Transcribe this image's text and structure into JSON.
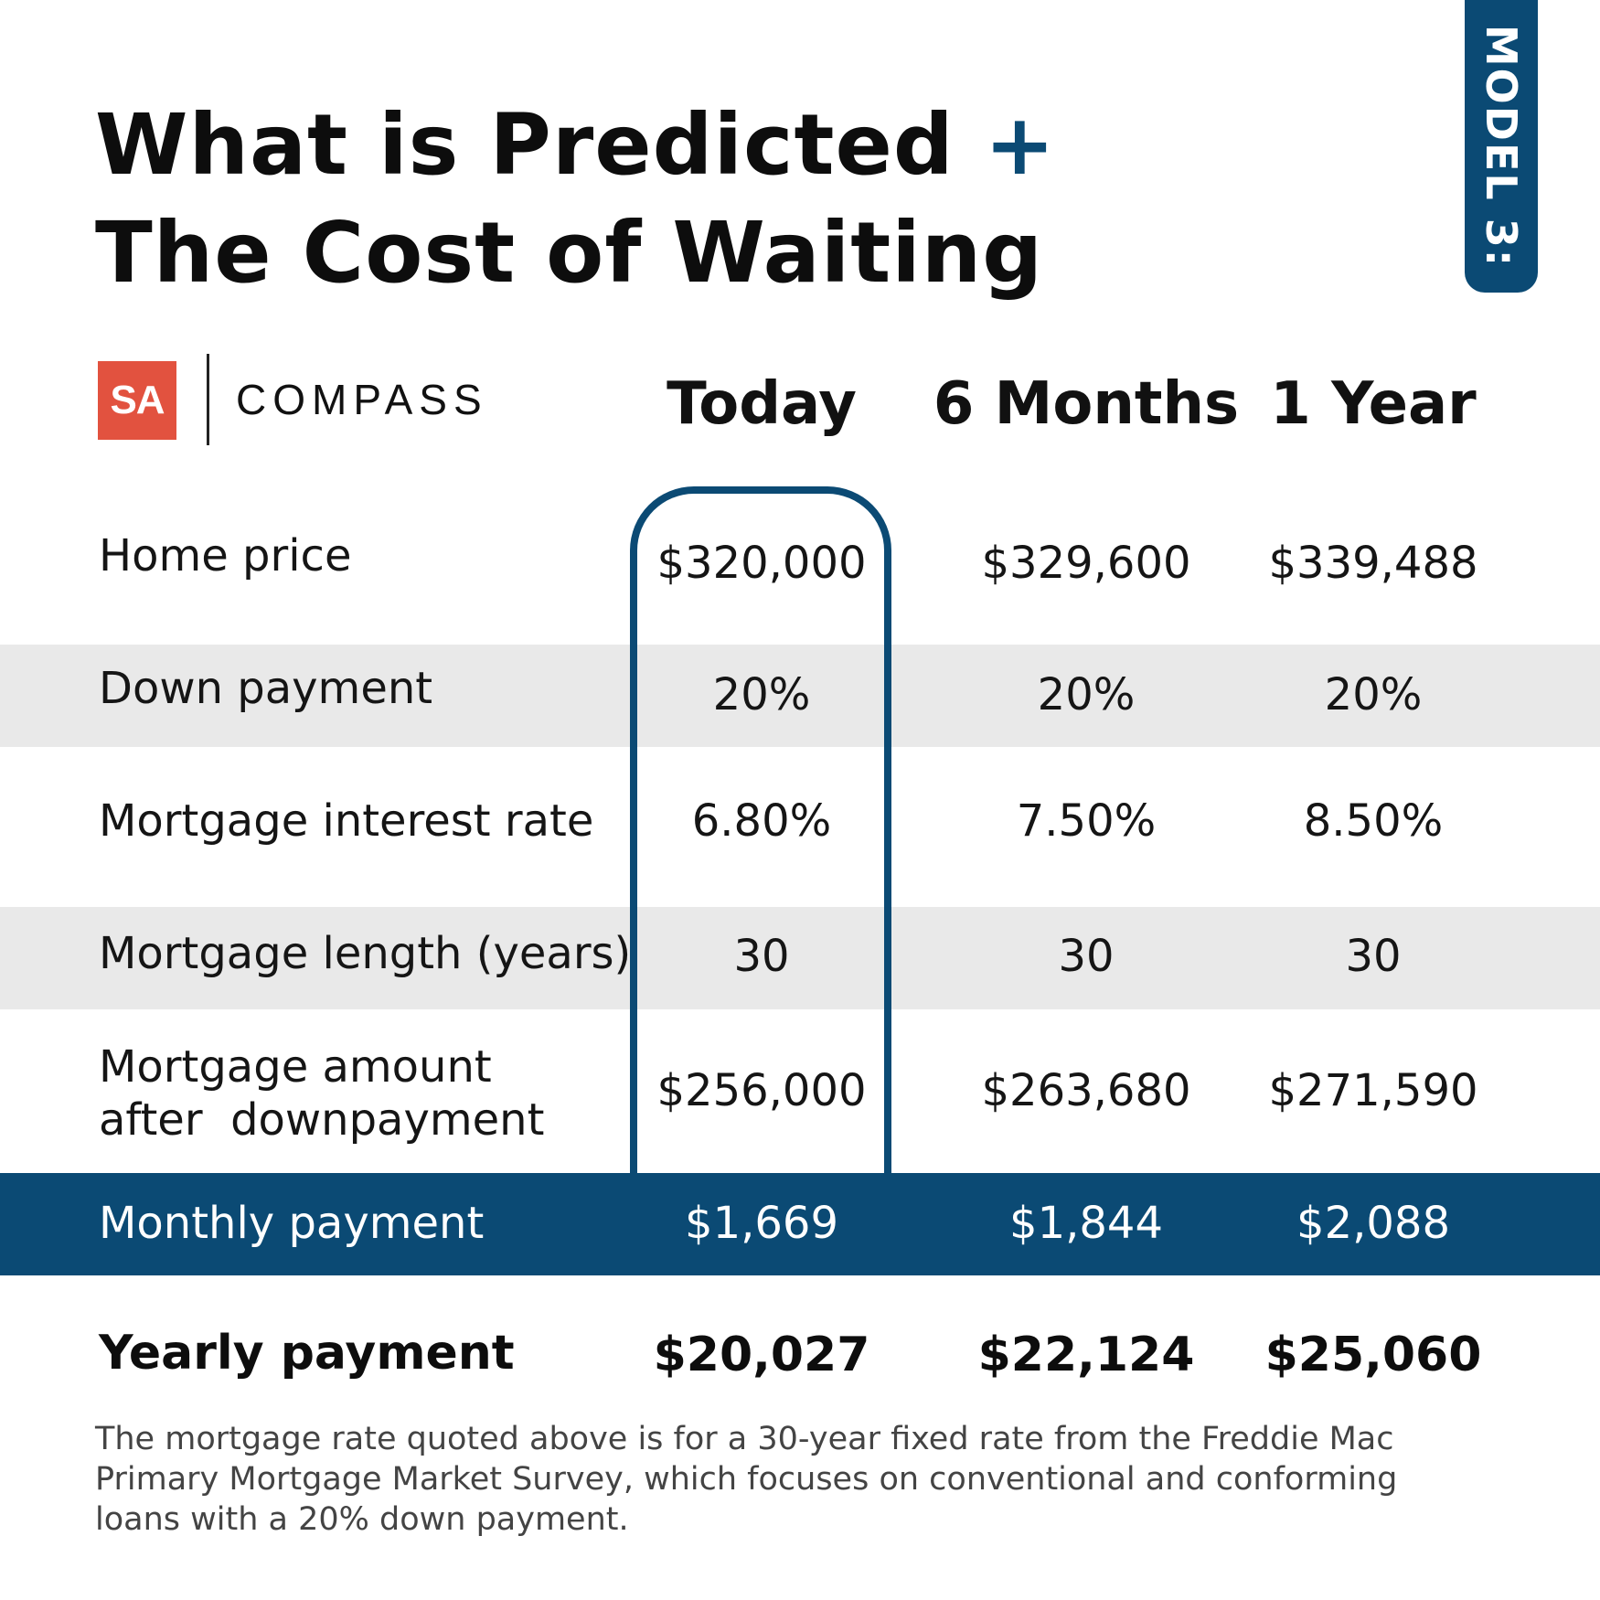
{
  "title": {
    "line1": "What is Predicted",
    "plus": "+",
    "line2": "The Cost of Waiting"
  },
  "model_tab": "MODEL 3:",
  "logos": {
    "sa": "SA",
    "compass": "COMPASS"
  },
  "columns": [
    "Today",
    "6 Months",
    "1 Year"
  ],
  "rows": [
    {
      "label": "Home price",
      "values": [
        "$320,000",
        "$329,600",
        "$339,488"
      ]
    },
    {
      "label": "Down payment",
      "values": [
        "20%",
        "20%",
        "20%"
      ]
    },
    {
      "label": "Mortgage interest rate",
      "values": [
        "6.80%",
        "7.50%",
        "8.50%"
      ]
    },
    {
      "label": "Mortgage length (years)",
      "values": [
        "30",
        "30",
        "30"
      ]
    },
    {
      "label_line1": "Mortgage amount",
      "label_line2": "after  downpayment",
      "values": [
        "$256,000",
        "$263,680",
        "$271,590"
      ]
    },
    {
      "label": "Monthly payment",
      "values": [
        "$1,669",
        "$1,844",
        "$2,088"
      ]
    },
    {
      "label": "Yearly payment",
      "values": [
        "$20,027",
        "$22,124",
        "$25,060"
      ]
    }
  ],
  "colors": {
    "accent_blue": "#0b4a74",
    "sa_red": "#e2523f",
    "stripe_gray": "#e9e9e9"
  },
  "footnote": "The mortgage rate quoted above is for a 30-year fixed rate from the Freddie Mac Primary Mortgage Market Survey, which focuses on conventional and conforming loans with a 20% down payment."
}
